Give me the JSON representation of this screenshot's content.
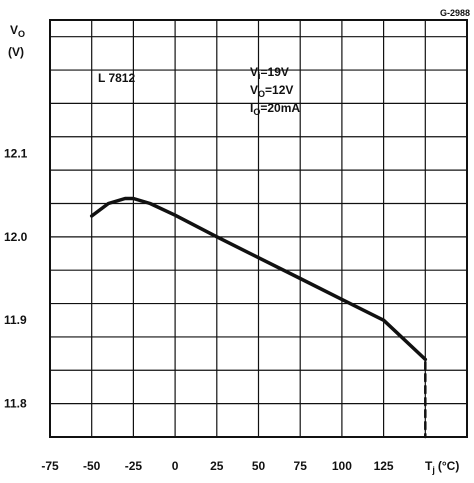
{
  "chart_data": {
    "type": "line",
    "figure_code": "G-2988",
    "ylabel_main": "V",
    "ylabel_sub": "O",
    "ylabel_unit": "(V)",
    "xlabel_main": "T",
    "xlabel_sub": "j",
    "xlabel_unit": "(°C)",
    "device_label": "L 7812",
    "conditions": [
      {
        "sym": "V",
        "sub": "i",
        "rest": "=19V"
      },
      {
        "sym": "V",
        "sub": "O",
        "rest": "=12V"
      },
      {
        "sym": "I",
        "sub": "O",
        "rest": "=20mA"
      }
    ],
    "xlim": [
      -75,
      175
    ],
    "ylim": [
      11.76,
      12.26
    ],
    "x_ticks": [
      -75,
      -50,
      -25,
      0,
      25,
      50,
      75,
      100,
      125
    ],
    "x_tick_labels": [
      "-75",
      "-50",
      "-25",
      "0",
      "25",
      "50",
      "75",
      "100",
      "125"
    ],
    "y_ticks": [
      11.8,
      11.9,
      12.0,
      12.1
    ],
    "y_tick_labels": [
      "11.8",
      "11.9",
      "12.0",
      "12.1"
    ],
    "grid": true,
    "series": [
      {
        "style": "solid",
        "x": [
          -50,
          -40,
          -30,
          -25,
          -15,
          0,
          25,
          50,
          75,
          100,
          125,
          150
        ],
        "y": [
          12.025,
          12.04,
          12.046,
          12.046,
          12.04,
          12.026,
          12.0,
          11.975,
          11.95,
          11.925,
          11.9,
          11.853
        ]
      },
      {
        "style": "dashed",
        "x": [
          125,
          150,
          150
        ],
        "y": [
          11.9,
          11.853,
          11.76
        ]
      }
    ],
    "colors": {
      "line": "#111111",
      "grid": "#111111",
      "background": "#ffffff"
    }
  }
}
